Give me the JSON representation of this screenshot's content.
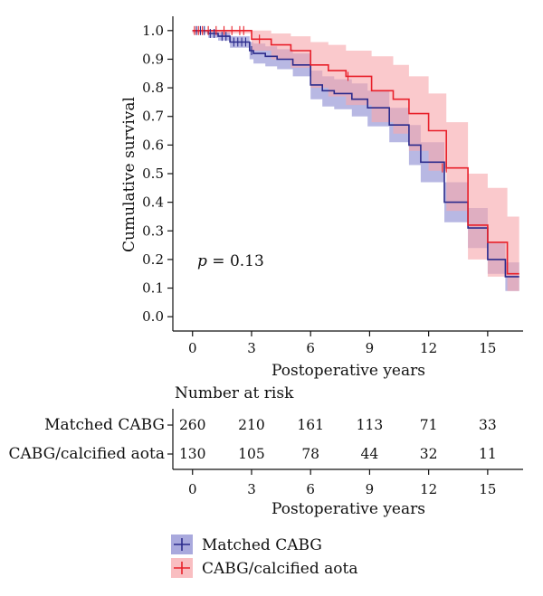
{
  "chart_data": {
    "type": "line",
    "subtype": "kaplan-meier",
    "title": "",
    "xlabel": "Postoperative years",
    "ylabel": "Cumulative survival",
    "xlim": [
      -1,
      16.8
    ],
    "ylim": [
      -0.05,
      1.05
    ],
    "xticks": [
      0,
      3,
      6,
      9,
      12,
      15
    ],
    "yticks": [
      0.0,
      0.1,
      0.2,
      0.3,
      0.4,
      0.5,
      0.6,
      0.7,
      0.8,
      0.9,
      1.0
    ],
    "grid": false,
    "annotation": {
      "p_label": "p",
      "p_value": " = 0.13"
    },
    "series": [
      {
        "name": "Matched CABG",
        "color": "#2b2b8c",
        "band_color": "#8c8cd2",
        "steps": [
          [
            0,
            1.0
          ],
          [
            0.8,
            0.99
          ],
          [
            1.3,
            0.98
          ],
          [
            1.9,
            0.96
          ],
          [
            2.9,
            0.93
          ],
          [
            3.1,
            0.92
          ],
          [
            3.7,
            0.91
          ],
          [
            4.3,
            0.9
          ],
          [
            5.1,
            0.88
          ],
          [
            6.0,
            0.81
          ],
          [
            6.6,
            0.79
          ],
          [
            7.2,
            0.78
          ],
          [
            8.1,
            0.76
          ],
          [
            8.9,
            0.73
          ],
          [
            10.0,
            0.67
          ],
          [
            11.0,
            0.6
          ],
          [
            11.6,
            0.54
          ],
          [
            12.8,
            0.4
          ],
          [
            14.0,
            0.31
          ],
          [
            15.0,
            0.2
          ],
          [
            15.9,
            0.14
          ],
          [
            16.6,
            0.14
          ]
        ],
        "upper": [
          [
            0,
            1.0
          ],
          [
            0.8,
            1.0
          ],
          [
            1.3,
            0.995
          ],
          [
            1.9,
            0.98
          ],
          [
            2.9,
            0.96
          ],
          [
            3.1,
            0.955
          ],
          [
            3.7,
            0.945
          ],
          [
            4.3,
            0.935
          ],
          [
            5.1,
            0.92
          ],
          [
            6.0,
            0.86
          ],
          [
            6.6,
            0.84
          ],
          [
            7.2,
            0.83
          ],
          [
            8.1,
            0.815
          ],
          [
            8.9,
            0.79
          ],
          [
            10.0,
            0.73
          ],
          [
            11.0,
            0.67
          ],
          [
            11.6,
            0.61
          ],
          [
            12.8,
            0.47
          ],
          [
            14.0,
            0.38
          ],
          [
            15.0,
            0.26
          ],
          [
            15.9,
            0.19
          ],
          [
            16.6,
            0.19
          ]
        ],
        "lower": [
          [
            0,
            0.995
          ],
          [
            0.8,
            0.975
          ],
          [
            1.3,
            0.965
          ],
          [
            1.9,
            0.94
          ],
          [
            2.9,
            0.9
          ],
          [
            3.1,
            0.885
          ],
          [
            3.7,
            0.875
          ],
          [
            4.3,
            0.865
          ],
          [
            5.1,
            0.84
          ],
          [
            6.0,
            0.76
          ],
          [
            6.6,
            0.735
          ],
          [
            7.2,
            0.725
          ],
          [
            8.1,
            0.7
          ],
          [
            8.9,
            0.665
          ],
          [
            10.0,
            0.61
          ],
          [
            11.0,
            0.53
          ],
          [
            11.6,
            0.47
          ],
          [
            12.8,
            0.33
          ],
          [
            14.0,
            0.24
          ],
          [
            15.0,
            0.15
          ],
          [
            15.9,
            0.09
          ],
          [
            16.6,
            0.09
          ]
        ],
        "censors": [
          [
            0.2,
            1.0
          ],
          [
            0.4,
            1.0
          ],
          [
            0.6,
            1.0
          ],
          [
            0.9,
            0.99
          ],
          [
            1.1,
            0.99
          ],
          [
            1.5,
            0.98
          ],
          [
            1.7,
            0.98
          ],
          [
            2.1,
            0.96
          ],
          [
            2.3,
            0.96
          ],
          [
            2.5,
            0.96
          ],
          [
            2.7,
            0.96
          ],
          [
            3.0,
            0.93
          ]
        ]
      },
      {
        "name": "CABG/calcified aota",
        "color": "#e8202a",
        "band_color": "#f7a8ac",
        "steps": [
          [
            0,
            1.0
          ],
          [
            3.0,
            0.97
          ],
          [
            4.0,
            0.95
          ],
          [
            5.0,
            0.93
          ],
          [
            6.0,
            0.88
          ],
          [
            6.9,
            0.86
          ],
          [
            7.8,
            0.84
          ],
          [
            9.1,
            0.79
          ],
          [
            10.2,
            0.76
          ],
          [
            11.0,
            0.71
          ],
          [
            12.0,
            0.65
          ],
          [
            12.9,
            0.52
          ],
          [
            14.0,
            0.32
          ],
          [
            15.0,
            0.26
          ],
          [
            16.0,
            0.15
          ],
          [
            16.6,
            0.15
          ]
        ],
        "upper": [
          [
            0,
            1.0
          ],
          [
            3.0,
            1.0
          ],
          [
            4.0,
            0.99
          ],
          [
            5.0,
            0.98
          ],
          [
            6.0,
            0.96
          ],
          [
            6.9,
            0.95
          ],
          [
            7.8,
            0.93
          ],
          [
            9.1,
            0.91
          ],
          [
            10.2,
            0.88
          ],
          [
            11.0,
            0.84
          ],
          [
            12.0,
            0.78
          ],
          [
            12.9,
            0.68
          ],
          [
            14.0,
            0.5
          ],
          [
            15.0,
            0.45
          ],
          [
            16.0,
            0.35
          ],
          [
            16.6,
            0.35
          ]
        ],
        "lower": [
          [
            0,
            0.99
          ],
          [
            3.0,
            0.93
          ],
          [
            4.0,
            0.9
          ],
          [
            5.0,
            0.87
          ],
          [
            6.0,
            0.8
          ],
          [
            6.9,
            0.77
          ],
          [
            7.8,
            0.74
          ],
          [
            9.1,
            0.68
          ],
          [
            10.2,
            0.64
          ],
          [
            11.0,
            0.58
          ],
          [
            12.0,
            0.51
          ],
          [
            12.9,
            0.37
          ],
          [
            14.0,
            0.2
          ],
          [
            15.0,
            0.14
          ],
          [
            16.0,
            0.09
          ],
          [
            16.6,
            0.09
          ]
        ],
        "censors": [
          [
            0.1,
            1.0
          ],
          [
            0.3,
            1.0
          ],
          [
            0.5,
            1.0
          ],
          [
            0.8,
            1.0
          ],
          [
            1.2,
            1.0
          ],
          [
            1.6,
            1.0
          ],
          [
            2.0,
            1.0
          ],
          [
            2.4,
            1.0
          ],
          [
            2.6,
            1.0
          ],
          [
            3.4,
            0.97
          ],
          [
            7.9,
            0.84
          ],
          [
            12.7,
            0.52
          ],
          [
            12.9,
            0.52
          ]
        ]
      }
    ],
    "risk_table": {
      "title": "Number at risk",
      "xlabel": "Postoperative years",
      "times": [
        0,
        3,
        6,
        9,
        12,
        15
      ],
      "rows": [
        {
          "label": "Matched CABG",
          "color": "#3a3aa0",
          "values": [
            "260",
            "210",
            "161",
            "113",
            "71",
            "33"
          ]
        },
        {
          "label": "CABG/calcified aota",
          "color": "#e8202a",
          "values": [
            "130",
            "105",
            "78",
            "44",
            "32",
            "11"
          ]
        }
      ]
    },
    "legend": {
      "placement": "bottom-left",
      "entries": [
        {
          "label": "Matched CABG",
          "color": "#2b2b8c",
          "swatch": "#8c8cd2"
        },
        {
          "label": "CABG/calcified aota",
          "color": "#e8202a",
          "swatch": "#f7a8ac"
        }
      ]
    }
  }
}
